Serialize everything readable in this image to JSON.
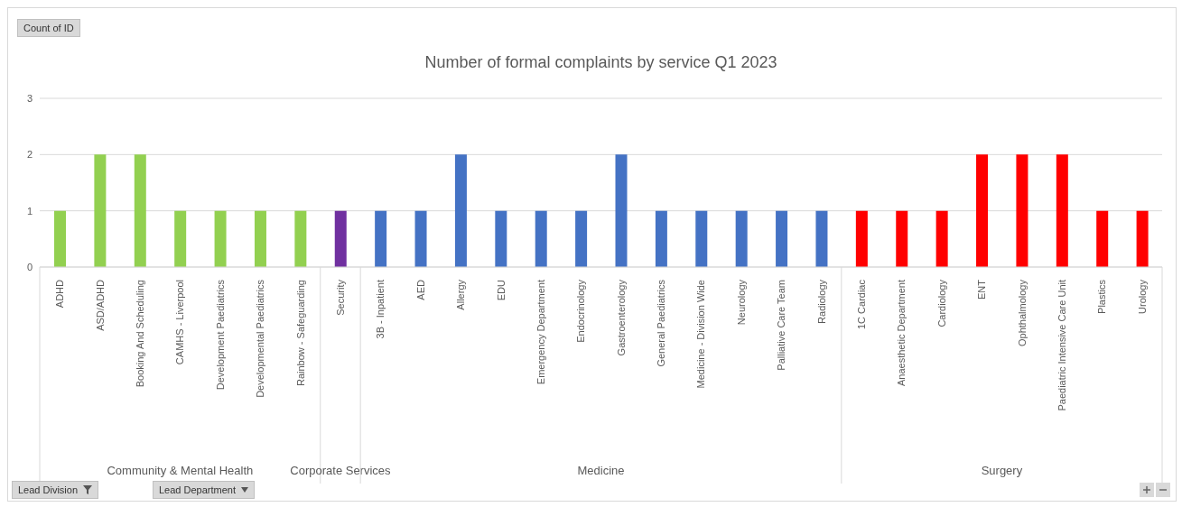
{
  "chart_data": {
    "type": "bar",
    "title": "Number of formal complaints by service Q1 2023",
    "categories": [
      "ADHD",
      "ASD/ADHD",
      "Booking And Scheduling",
      "CAMHS - Liverpool",
      "Development Paediatrics",
      "Developmental Paediatrics",
      "Rainbow - Safeguarding",
      "Security",
      "3B - Inpatient",
      "AED",
      "Allergy",
      "EDU",
      "Emergency Department",
      "Endocrinology",
      "Gastroenterology",
      "General Paediatrics",
      "Medicine - Division Wide",
      "Neurology",
      "Palliative Care Team",
      "Radiology",
      "1C Cardiac",
      "Anaesthetic Department",
      "Cardiology",
      "ENT",
      "Ophthalmology",
      "Paediatric Intensive Care Unit",
      "Plastics",
      "Urology"
    ],
    "values": [
      1,
      2,
      2,
      1,
      1,
      1,
      1,
      1,
      1,
      1,
      2,
      1,
      1,
      1,
      2,
      1,
      1,
      1,
      1,
      1,
      1,
      1,
      1,
      2,
      2,
      2,
      1,
      1
    ],
    "colors": [
      "#92d050",
      "#92d050",
      "#92d050",
      "#92d050",
      "#92d050",
      "#92d050",
      "#92d050",
      "#7030a0",
      "#4472c4",
      "#4472c4",
      "#4472c4",
      "#4472c4",
      "#4472c4",
      "#4472c4",
      "#4472c4",
      "#4472c4",
      "#4472c4",
      "#4472c4",
      "#4472c4",
      "#4472c4",
      "#ff0000",
      "#ff0000",
      "#ff0000",
      "#ff0000",
      "#ff0000",
      "#ff0000",
      "#ff0000",
      "#ff0000"
    ],
    "ylim": [
      0,
      3
    ],
    "yticks": [
      0,
      1,
      2,
      3
    ],
    "grid": "y",
    "annotations": [
      "Community & Mental Health",
      "Corporate Services",
      "Medicine",
      "Surgery",
      "Count of ID",
      "Lead Division",
      "Lead Department"
    ]
  }
}
